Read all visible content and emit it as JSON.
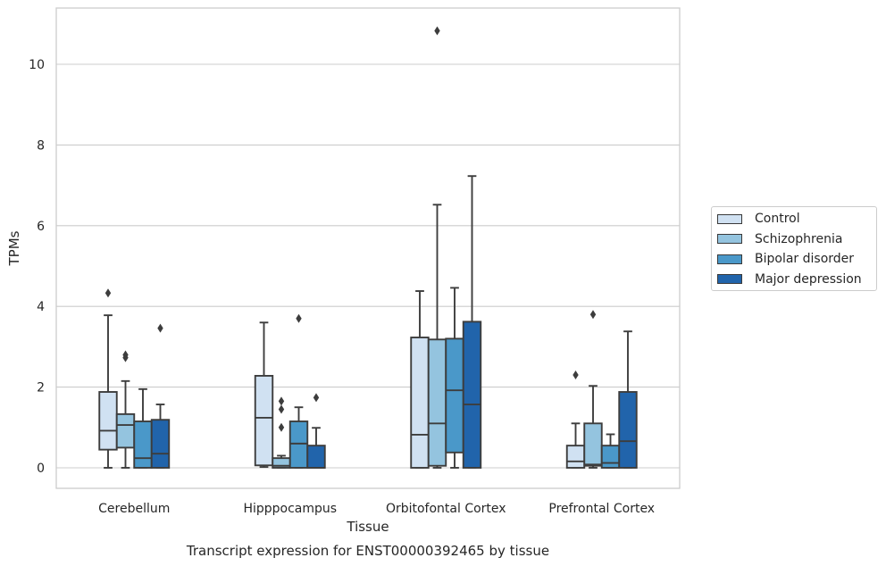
{
  "chart_data": {
    "type": "box",
    "title": "",
    "caption": "Transcript expression for ENST00000392465 by tissue",
    "xlabel": "Tissue",
    "ylabel": "TPMs",
    "ylim": [
      -0.5,
      11.4
    ],
    "yticks": [
      0,
      2,
      4,
      6,
      8,
      10
    ],
    "grid": true,
    "legend_position": "right",
    "categories": [
      "Cerebellum",
      "Hipppocampus",
      "Orbitofontal Cortex",
      "Prefrontal Cortex"
    ],
    "series": [
      {
        "name": "Control",
        "color": "#d0e1f2",
        "boxes": [
          {
            "whislo": 0.0,
            "q1": 0.45,
            "med": 0.92,
            "q3": 1.88,
            "whishi": 3.78,
            "fliers": [
              4.33
            ]
          },
          {
            "whislo": 0.02,
            "q1": 0.06,
            "med": 1.24,
            "q3": 2.28,
            "whishi": 3.6,
            "fliers": []
          },
          {
            "whislo": 0.0,
            "q1": 0.0,
            "med": 0.82,
            "q3": 3.23,
            "whishi": 4.38,
            "fliers": []
          },
          {
            "whislo": 0.0,
            "q1": 0.0,
            "med": 0.16,
            "q3": 0.55,
            "whishi": 1.1,
            "fliers": [
              2.3
            ]
          }
        ]
      },
      {
        "name": "Schizophrenia",
        "color": "#94c4df",
        "boxes": [
          {
            "whislo": 0.0,
            "q1": 0.5,
            "med": 1.06,
            "q3": 1.33,
            "whishi": 2.15,
            "fliers": [
              2.73,
              2.8
            ]
          },
          {
            "whislo": 0.0,
            "q1": 0.0,
            "med": 0.05,
            "q3": 0.24,
            "whishi": 0.3,
            "fliers": [
              1.0,
              1.45,
              1.65
            ]
          },
          {
            "whislo": 0.0,
            "q1": 0.05,
            "med": 1.1,
            "q3": 3.18,
            "whishi": 6.52,
            "fliers": [
              10.83
            ]
          },
          {
            "whislo": 0.0,
            "q1": 0.05,
            "med": 0.08,
            "q3": 1.1,
            "whishi": 2.03,
            "fliers": [
              3.8
            ]
          }
        ]
      },
      {
        "name": "Bipolar disorder",
        "color": "#4a98c9",
        "boxes": [
          {
            "whislo": 0.0,
            "q1": 0.0,
            "med": 0.24,
            "q3": 1.15,
            "whishi": 1.95,
            "fliers": []
          },
          {
            "whislo": 0.0,
            "q1": 0.0,
            "med": 0.6,
            "q3": 1.15,
            "whishi": 1.5,
            "fliers": [
              3.7
            ]
          },
          {
            "whislo": 0.0,
            "q1": 0.38,
            "med": 1.92,
            "q3": 3.2,
            "whishi": 4.46,
            "fliers": []
          },
          {
            "whislo": 0.0,
            "q1": 0.0,
            "med": 0.12,
            "q3": 0.55,
            "whishi": 0.83,
            "fliers": []
          }
        ]
      },
      {
        "name": "Major depression",
        "color": "#2164ab",
        "boxes": [
          {
            "whislo": 0.0,
            "q1": 0.0,
            "med": 0.35,
            "q3": 1.19,
            "whishi": 1.57,
            "fliers": [
              3.46
            ]
          },
          {
            "whislo": 0.0,
            "q1": 0.0,
            "med": 0.0,
            "q3": 0.55,
            "whishi": 0.99,
            "fliers": [
              1.74
            ]
          },
          {
            "whislo": 0.0,
            "q1": 0.0,
            "med": 1.57,
            "q3": 3.62,
            "whishi": 7.23,
            "fliers": []
          },
          {
            "whislo": 0.0,
            "q1": 0.0,
            "med": 0.66,
            "q3": 1.88,
            "whishi": 3.38,
            "fliers": []
          }
        ]
      }
    ]
  }
}
